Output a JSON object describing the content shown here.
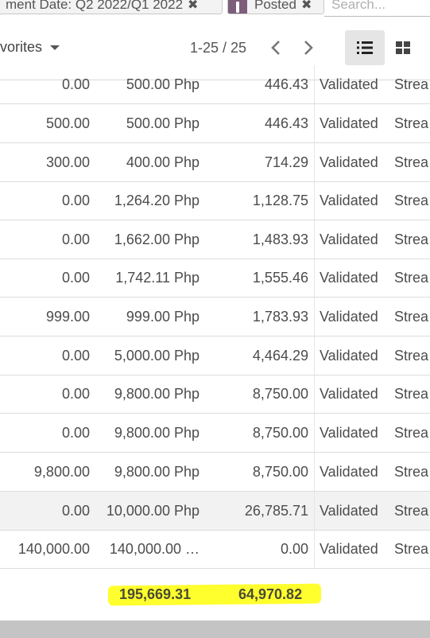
{
  "search": {
    "facet_date": "ment Date: Q2 2022/Q1 2022",
    "facet_posted": "Posted",
    "placeholder": "Search...",
    "remove_glyph": "✖"
  },
  "controls": {
    "favorites_label": "vorites",
    "pager_text": "1-25 / 25",
    "list_view_icon": "list-icon",
    "kanban_view_icon": "kanban-icon"
  },
  "rows": [
    {
      "c1": "0.00",
      "c2": "500.00 Php",
      "c3": "446.43",
      "status": "Validated",
      "c5": "Strea"
    },
    {
      "c1": "500.00",
      "c2": "500.00 Php",
      "c3": "446.43",
      "status": "Validated",
      "c5": "Strea"
    },
    {
      "c1": "300.00",
      "c2": "400.00 Php",
      "c3": "714.29",
      "status": "Validated",
      "c5": "Strea"
    },
    {
      "c1": "0.00",
      "c2": "1,264.20 Php",
      "c3": "1,128.75",
      "status": "Validated",
      "c5": "Strea"
    },
    {
      "c1": "0.00",
      "c2": "1,662.00 Php",
      "c3": "1,483.93",
      "status": "Validated",
      "c5": "Strea"
    },
    {
      "c1": "0.00",
      "c2": "1,742.11 Php",
      "c3": "1,555.46",
      "status": "Validated",
      "c5": "Strea"
    },
    {
      "c1": "999.00",
      "c2": "999.00 Php",
      "c3": "1,783.93",
      "status": "Validated",
      "c5": "Strea"
    },
    {
      "c1": "0.00",
      "c2": "5,000.00 Php",
      "c3": "4,464.29",
      "status": "Validated",
      "c5": "Strea"
    },
    {
      "c1": "0.00",
      "c2": "9,800.00 Php",
      "c3": "8,750.00",
      "status": "Validated",
      "c5": "Strea"
    },
    {
      "c1": "0.00",
      "c2": "9,800.00 Php",
      "c3": "8,750.00",
      "status": "Validated",
      "c5": "Strea"
    },
    {
      "c1": "9,800.00",
      "c2": "9,800.00 Php",
      "c3": "8,750.00",
      "status": "Validated",
      "c5": "Strea"
    },
    {
      "c1": "0.00",
      "c2": "10,000.00 Php",
      "c3": "26,785.71",
      "status": "Validated",
      "c5": "Strea"
    },
    {
      "c1": "140,000.00",
      "c2": "140,000.00 …",
      "c3": "0.00",
      "status": "Validated",
      "c5": "Strea"
    }
  ],
  "totals": {
    "total_1": "195,669.31",
    "total_2": "64,970.82",
    "highlight_color": "#ffff2e"
  }
}
